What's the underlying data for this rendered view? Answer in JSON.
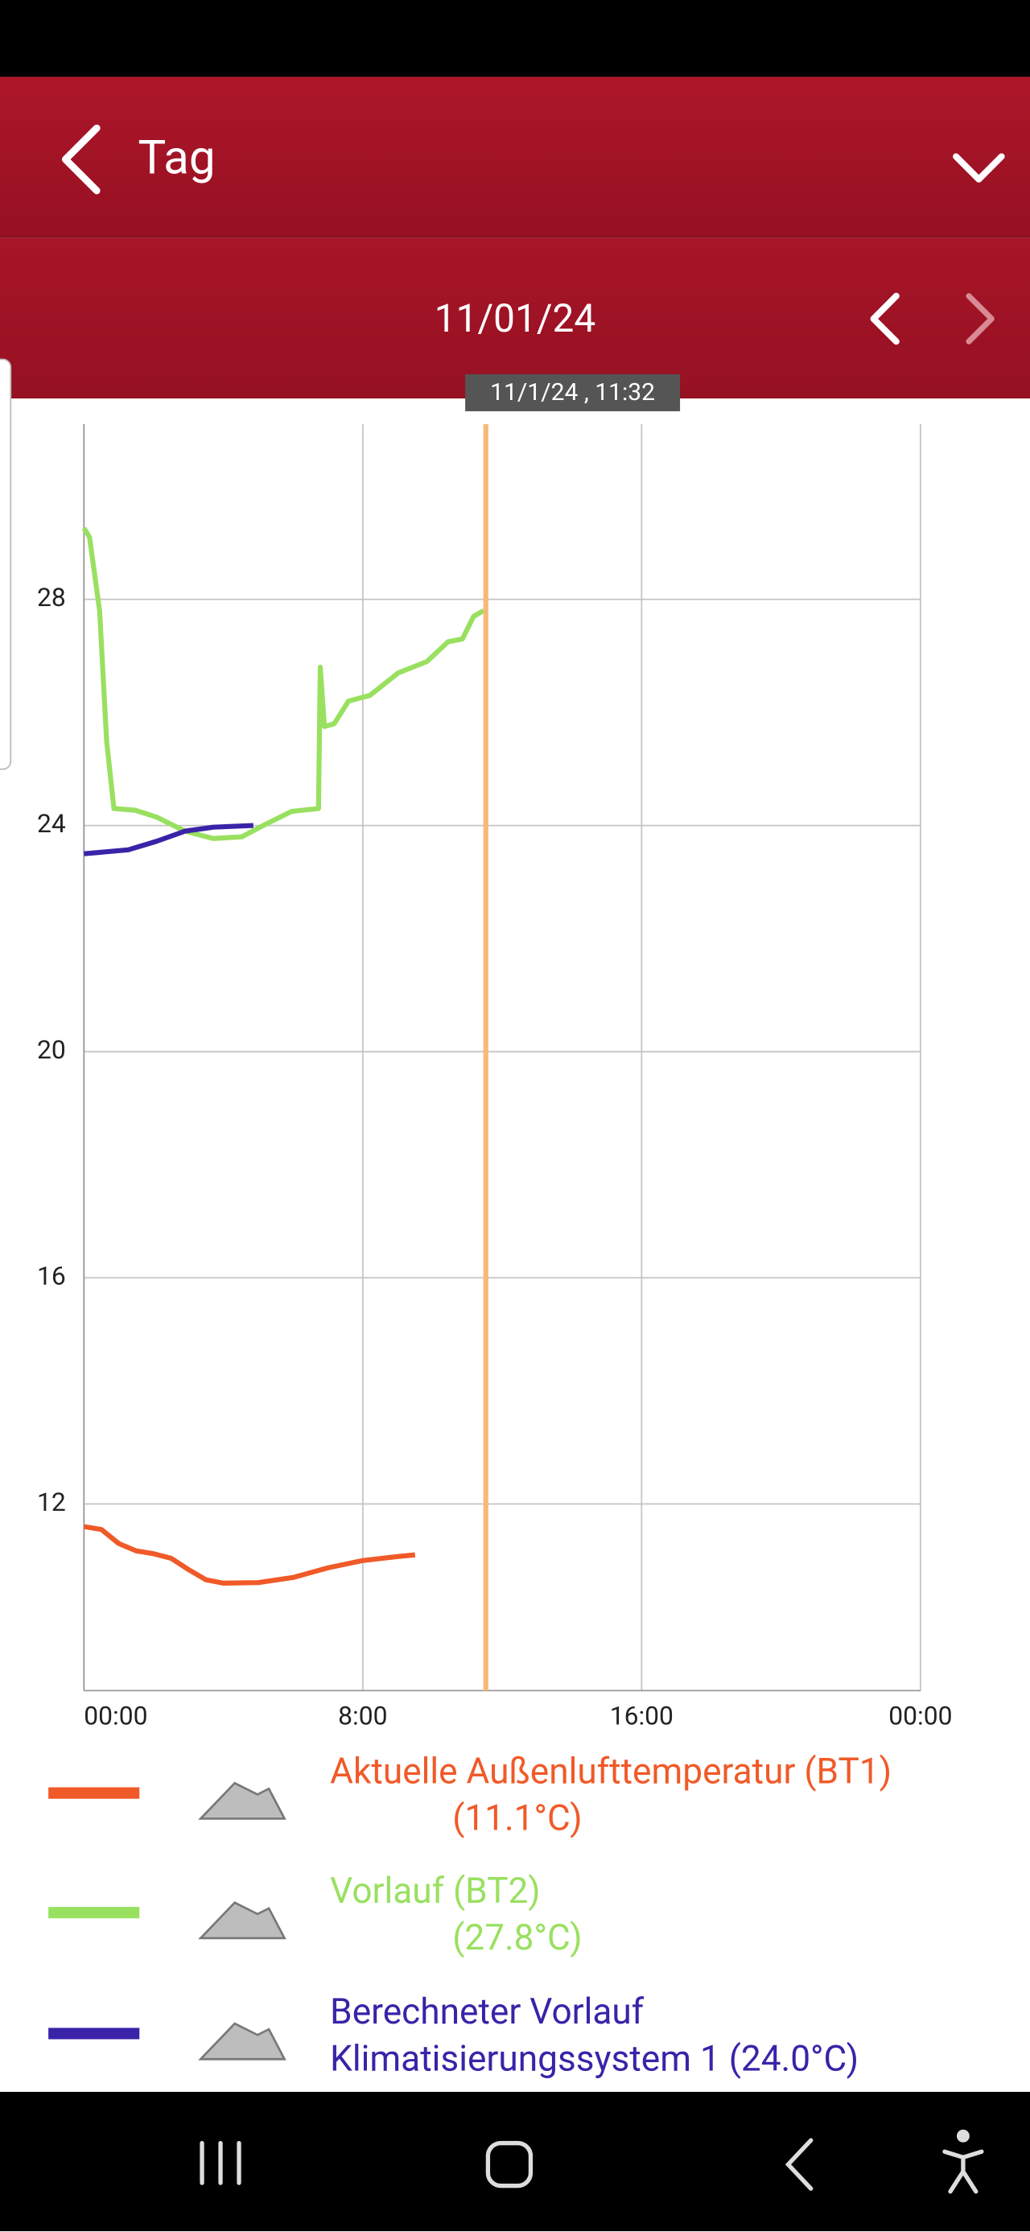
{
  "header": {
    "title": "Tag"
  },
  "date_bar": {
    "date": "11/01/24"
  },
  "chart_data": {
    "type": "line",
    "xlim": [
      0,
      24
    ],
    "xticks": [
      {
        "value": 0,
        "label": "00:00"
      },
      {
        "value": 8,
        "label": "8:00"
      },
      {
        "value": 16,
        "label": "16:00"
      },
      {
        "value": 24,
        "label": "00:00"
      }
    ],
    "ylim": [
      8.7,
      31.1
    ],
    "yticks": [
      12,
      16,
      20,
      24,
      28
    ],
    "grid": true,
    "cursor": {
      "x": 11.53,
      "label": "11/1/24 , 11:32",
      "color": "#f8b878"
    },
    "series": [
      {
        "name": "Aktuelle Außenlufttemperatur (BT1)",
        "current_label": "(11.1°C)",
        "color": "#f05a28",
        "x": [
          0,
          0.5,
          1,
          1.5,
          2,
          2.5,
          3,
          3.5,
          4,
          5,
          6,
          7,
          8,
          9,
          9.5
        ],
        "values": [
          11.6,
          11.55,
          11.3,
          11.17,
          11.12,
          11.04,
          10.84,
          10.66,
          10.6,
          10.61,
          10.7,
          10.87,
          11.0,
          11.07,
          11.1
        ]
      },
      {
        "name": "Vorlauf (BT2)",
        "current_label": "(27.8°C)",
        "color": "#99e060",
        "x": [
          0,
          0.16,
          0.45,
          0.65,
          0.86,
          1.47,
          2.08,
          2.9,
          3.71,
          4.53,
          5.14,
          5.96,
          6.73,
          6.78,
          6.9,
          7.18,
          7.59,
          8.2,
          9.02,
          9.84,
          10.45,
          10.86,
          11.18,
          11.47
        ],
        "values": [
          29.26,
          29.1,
          27.8,
          25.5,
          24.3,
          24.27,
          24.15,
          23.9,
          23.77,
          23.8,
          24.0,
          24.25,
          24.3,
          26.8,
          25.75,
          25.8,
          26.2,
          26.3,
          26.7,
          26.9,
          27.25,
          27.3,
          27.7,
          27.8
        ]
      },
      {
        "name": "Berechneter Vorlauf Klimatisierungssystem 1",
        "current_label": "(24.0°C)",
        "color": "#3a23a8",
        "x": [
          0,
          1.27,
          2.08,
          2.9,
          3.71,
          4.86
        ],
        "values": [
          23.5,
          23.57,
          23.72,
          23.9,
          23.97,
          24.0
        ]
      }
    ]
  }
}
